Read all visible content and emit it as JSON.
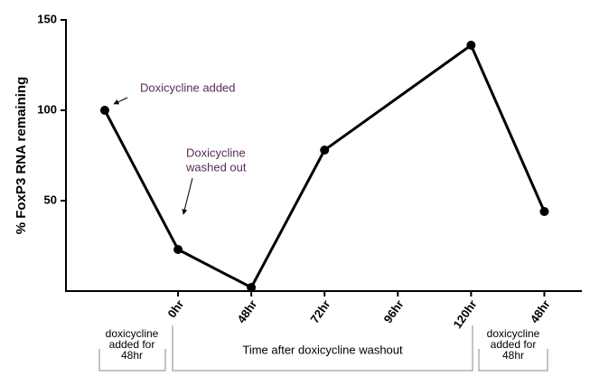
{
  "chart_data": {
    "type": "line",
    "ylabel": "% FoxP3 RNA remaining",
    "x": [
      0,
      1,
      2,
      3,
      5,
      6
    ],
    "series": [
      {
        "color": "#000000",
        "values": [
          100,
          23,
          2,
          78,
          136,
          44
        ]
      }
    ],
    "xlim": [
      -0.53,
      6.5
    ],
    "xticks": [
      {
        "value": 1,
        "label": "0hr"
      },
      {
        "value": 2,
        "label": "48hr"
      },
      {
        "value": 3,
        "label": "72hr"
      },
      {
        "value": 4,
        "label": "96hr"
      },
      {
        "value": 5,
        "label": "120hr"
      },
      {
        "value": 6,
        "label": "48hr"
      }
    ],
    "ylim": [
      0,
      150
    ],
    "yticks": [
      50,
      100,
      150
    ],
    "annotations": [
      {
        "lines": [
          "Doxicycline added"
        ]
      },
      {
        "lines": [
          "Doxicycline",
          "washed out"
        ]
      }
    ],
    "groups": [
      {
        "lines": [
          "doxicycline",
          "added for",
          "48hr"
        ]
      },
      {
        "lines": [
          "Time after doxicycline washout"
        ]
      },
      {
        "lines": [
          "doxicycline",
          "added for",
          "48hr"
        ]
      }
    ]
  }
}
